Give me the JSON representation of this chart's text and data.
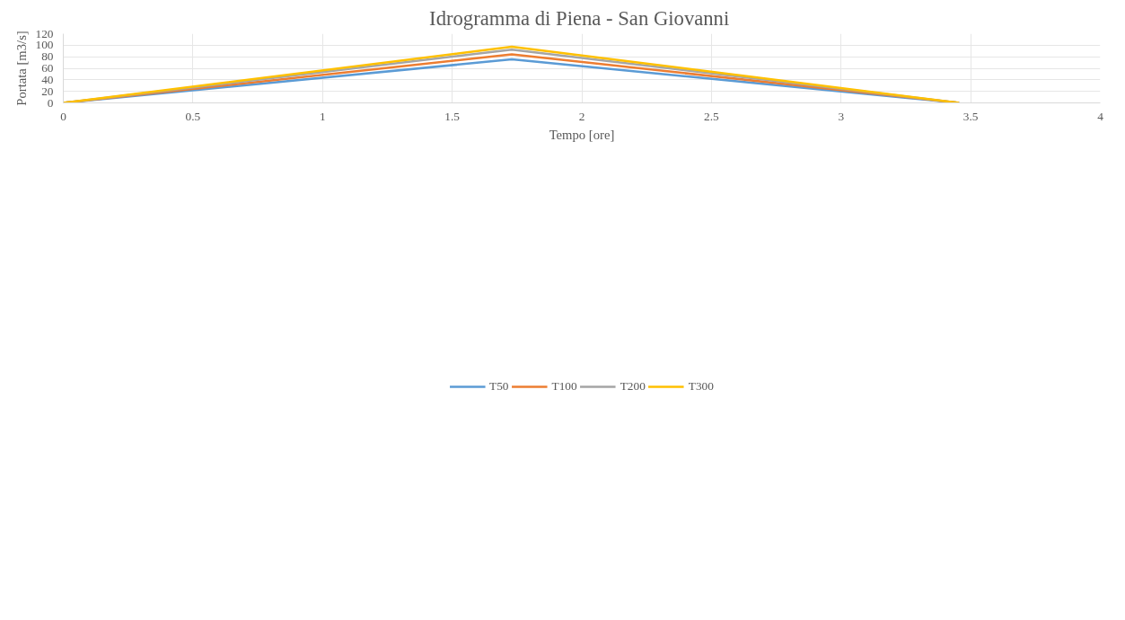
{
  "chart_data": {
    "type": "line",
    "title": "Idrogramma  di Piena - San Giovanni",
    "xlabel": "Tempo [ore]",
    "ylabel": "Portata [m3/s]",
    "xlim": [
      0,
      4
    ],
    "xticks": [
      0,
      0.5,
      1,
      1.5,
      2,
      2.5,
      3,
      3.5,
      4
    ],
    "ylim": [
      0,
      120
    ],
    "yticks": [
      0,
      20,
      40,
      60,
      80,
      100,
      120
    ],
    "grid": true,
    "legend": "bottom",
    "marker": "none",
    "line_style": "solid",
    "series": [
      {
        "name": "T50",
        "color": "#5b9bd5",
        "x": [
          0,
          1.73,
          3.455
        ],
        "values": [
          0,
          75.5,
          0
        ]
      },
      {
        "name": "T100",
        "color": "#ed7d31",
        "x": [
          0,
          1.73,
          3.455
        ],
        "values": [
          0,
          84,
          0
        ]
      },
      {
        "name": "T200",
        "color": "#a5a5a5",
        "x": [
          0,
          1.73,
          3.455
        ],
        "values": [
          0,
          92.5,
          0
        ]
      },
      {
        "name": "T300",
        "color": "#ffc000",
        "x": [
          0,
          1.73,
          3.455
        ],
        "values": [
          0,
          97.5,
          0
        ]
      }
    ]
  }
}
